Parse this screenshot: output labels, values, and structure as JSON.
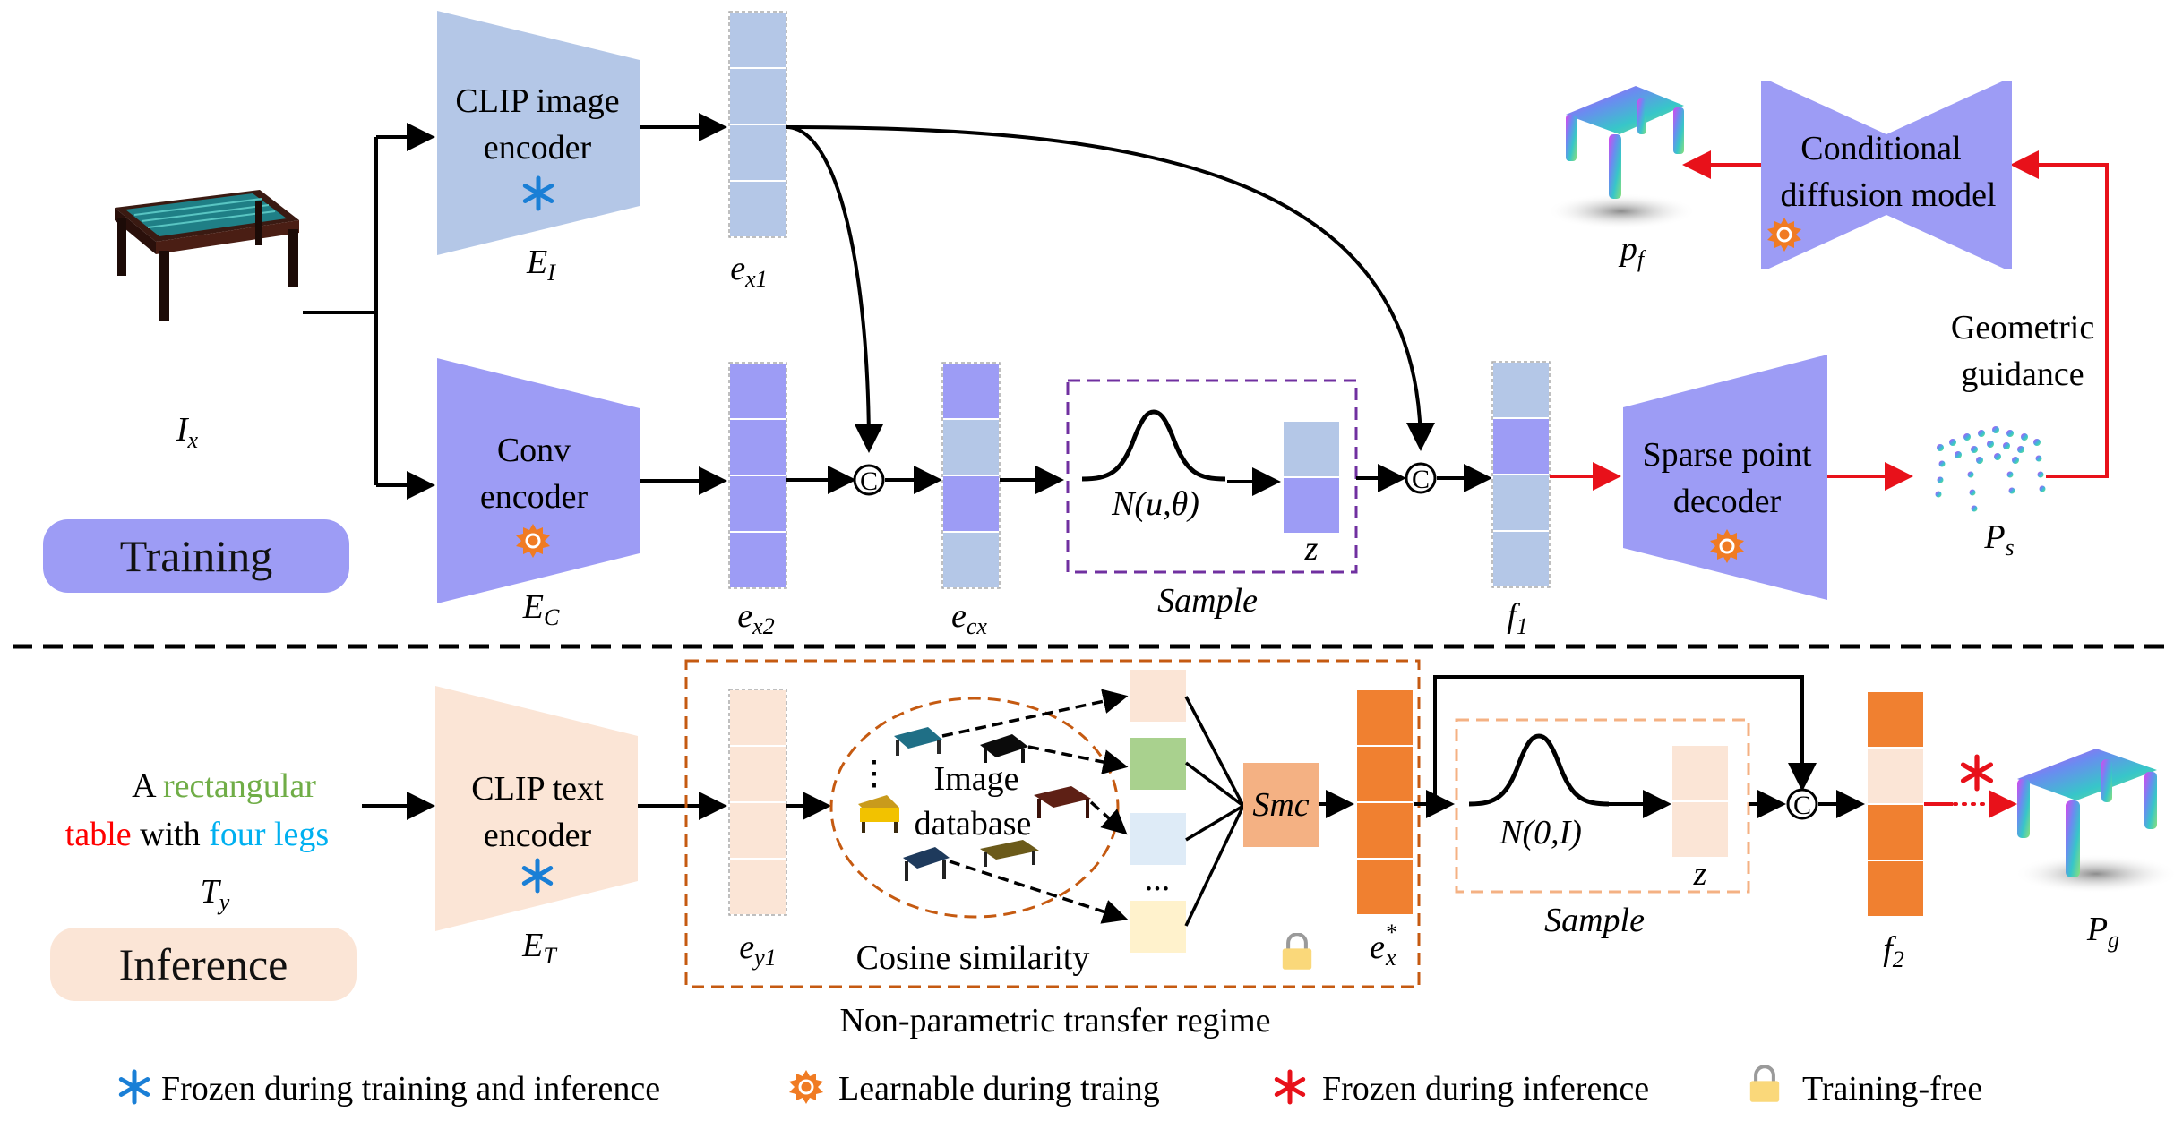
{
  "colors": {
    "frozen": "#1a7fd6",
    "learnable": "#f07b23",
    "red_frozen": "#e8111a",
    "light_blue": "#b4c7e7",
    "purple": "#9d9cf5",
    "peach": "#fbe5d6",
    "orange": "#f08030",
    "lock": "#fad87a",
    "sample_border_train": "#7030a0",
    "sample_border_infer": "#f4b183",
    "npt_border": "#c55a11",
    "cat_green": "#70ad47",
    "cat_red": "#ff0000",
    "cat_blue": "#00b0f0"
  },
  "icons": {
    "frozen": "blue-asterisk-icon",
    "learnable": "orange-gear-icon",
    "red_frozen": "red-asterisk-icon",
    "training_free": "lock-icon"
  },
  "training": {
    "pill": "Training",
    "input_symbol": "I",
    "input_sub": "x",
    "clip_image_encoder": {
      "line1": "CLIP image",
      "line2": "encoder",
      "symbol": "E",
      "sub": "I"
    },
    "conv_encoder": {
      "line1": "Conv",
      "line2": "encoder",
      "symbol": "E",
      "sub": "C"
    },
    "ex1": {
      "symbol": "e",
      "sub": "x1"
    },
    "ex2": {
      "symbol": "e",
      "sub": "x2"
    },
    "ecx": {
      "symbol": "e",
      "sub": "cx"
    },
    "concat": "C",
    "sample_box": {
      "formula": "N(u,θ)",
      "z": "z",
      "label": "Sample"
    },
    "f1": {
      "symbol": "f",
      "sub": "1"
    },
    "sparse_decoder": {
      "line1": "Sparse point",
      "line2": "decoder"
    },
    "ps": {
      "symbol": "P",
      "sub": "s"
    },
    "geometric_guidance": {
      "line1": "Geometric",
      "line2": "guidance"
    },
    "diffusion": {
      "line1": "Conditional",
      "line2": "diffusion model"
    },
    "pf": {
      "symbol": "p",
      "sub": "f"
    }
  },
  "inference": {
    "pill": "Inference",
    "text_prompt": {
      "line1_a": "A ",
      "line1_b": "rectangular",
      "line2_a": "table",
      "line2_b": " with ",
      "line2_c": "four legs"
    },
    "ty": {
      "symbol": "T",
      "sub": "y"
    },
    "clip_text_encoder": {
      "line1": "CLIP text",
      "line2": "encoder",
      "symbol": "E",
      "sub": "T"
    },
    "ey1": {
      "symbol": "e",
      "sub": "y1"
    },
    "database": {
      "line1": "Image",
      "line2": "database",
      "dots": "⋮",
      "list_dots": "..."
    },
    "cosine": "Cosine similarity",
    "smc": "Smc",
    "ex_star": {
      "symbol": "e",
      "sub": "x",
      "sup": "*"
    },
    "npt_label": "Non-parametric transfer regime",
    "sample_box": {
      "formula": "N(0,I)",
      "z": "z",
      "label": "Sample"
    },
    "concat": "C",
    "f2": {
      "symbol": "f",
      "sub": "2"
    },
    "pg": {
      "symbol": "P",
      "sub": "g"
    }
  },
  "legend": {
    "frozen": "Frozen during training and inference",
    "learnable": "Learnable during traing",
    "red_frozen": "Frozen during inference",
    "training_free": "Training-free"
  }
}
